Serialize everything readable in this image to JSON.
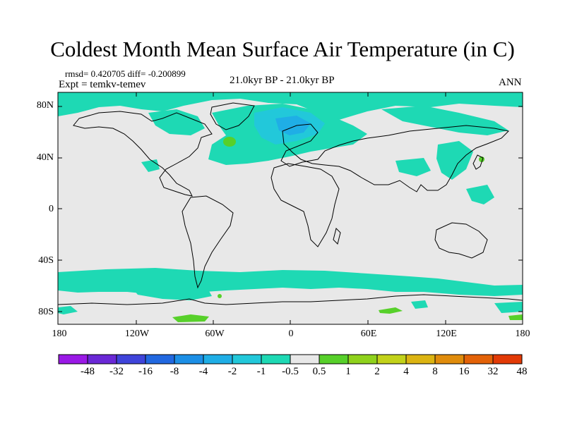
{
  "title": "Coldest Month Mean Surface Air Temperature (in C)",
  "stats_line": "rmsd= 0.420705 diff= -0.200899",
  "experiment_line": "Expt = temkv-temev",
  "center_label": "21.0kyr BP - 21.0kyr BP",
  "season_label": "ANN",
  "lat_ticks": [
    "80N",
    "40N",
    "0",
    "40S",
    "80S"
  ],
  "lon_ticks": [
    "180",
    "120W",
    "60W",
    "0",
    "60E",
    "120E",
    "180"
  ],
  "colorbar": {
    "labels": [
      "-48",
      "-32",
      "-16",
      "-8",
      "-4",
      "-2",
      "-1",
      "-0.5",
      "0.5",
      "1",
      "2",
      "4",
      "8",
      "16",
      "32",
      "48"
    ],
    "colors": [
      "#9a19e6",
      "#6a28d6",
      "#3f44da",
      "#2168e0",
      "#1c8fe6",
      "#1faee6",
      "#22c8da",
      "#1ed9b4",
      "#e8e8e8",
      "#57d02a",
      "#8fd21c",
      "#c2d21a",
      "#dcb412",
      "#e08c0c",
      "#e36208",
      "#e23a06"
    ]
  },
  "colors": {
    "neutral": "#e8e8e8",
    "coastline": "#000000",
    "cool_light": "#1ed9b4",
    "cool_mid": "#22c8da",
    "cool_strong": "#1faee6",
    "warm_light": "#57d02a"
  }
}
